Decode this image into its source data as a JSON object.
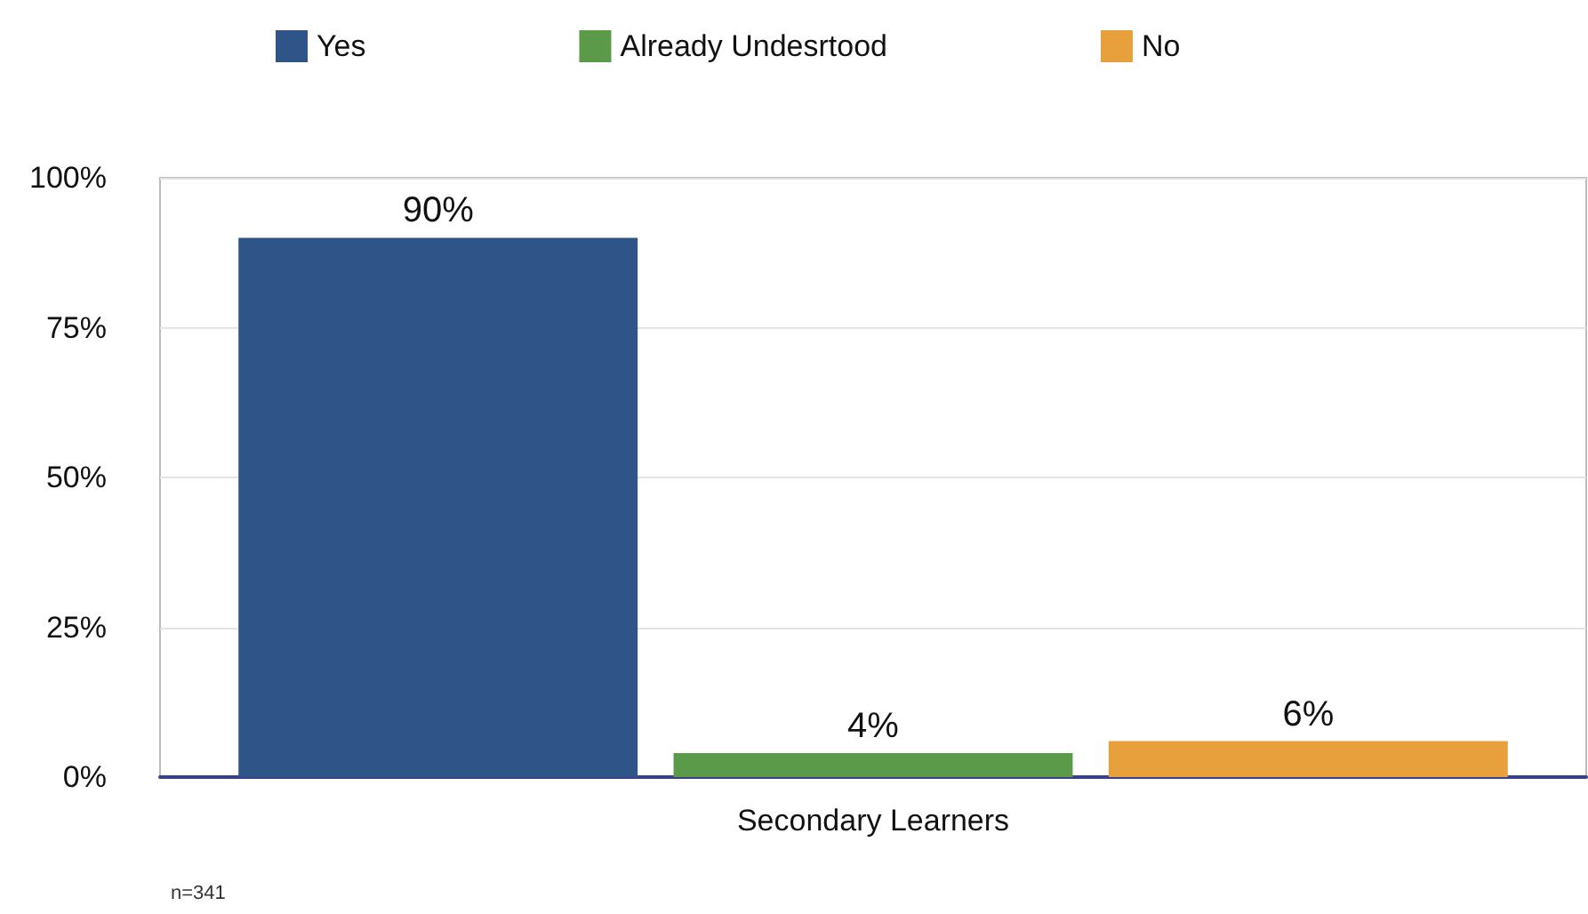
{
  "chart_data": {
    "type": "bar",
    "categories": [
      "Secondary Learners"
    ],
    "series": [
      {
        "name": "Yes",
        "color": "#2e5488",
        "values": [
          90
        ],
        "value_labels": [
          "90%"
        ]
      },
      {
        "name": "Already Undesrtood",
        "color": "#5a9a48",
        "values": [
          4
        ],
        "value_labels": [
          "4%"
        ]
      },
      {
        "name": "No",
        "color": "#e8a03c",
        "values": [
          6
        ],
        "value_labels": [
          "6%"
        ]
      }
    ],
    "ylim": [
      0,
      100
    ],
    "yticks": [
      {
        "value": 0,
        "label": "0%"
      },
      {
        "value": 25,
        "label": "25%"
      },
      {
        "value": 50,
        "label": "50%"
      },
      {
        "value": 75,
        "label": "75%"
      },
      {
        "value": 100,
        "label": "100%"
      }
    ],
    "grid": "y",
    "legend": "top",
    "annotations": [
      "n=341"
    ]
  }
}
